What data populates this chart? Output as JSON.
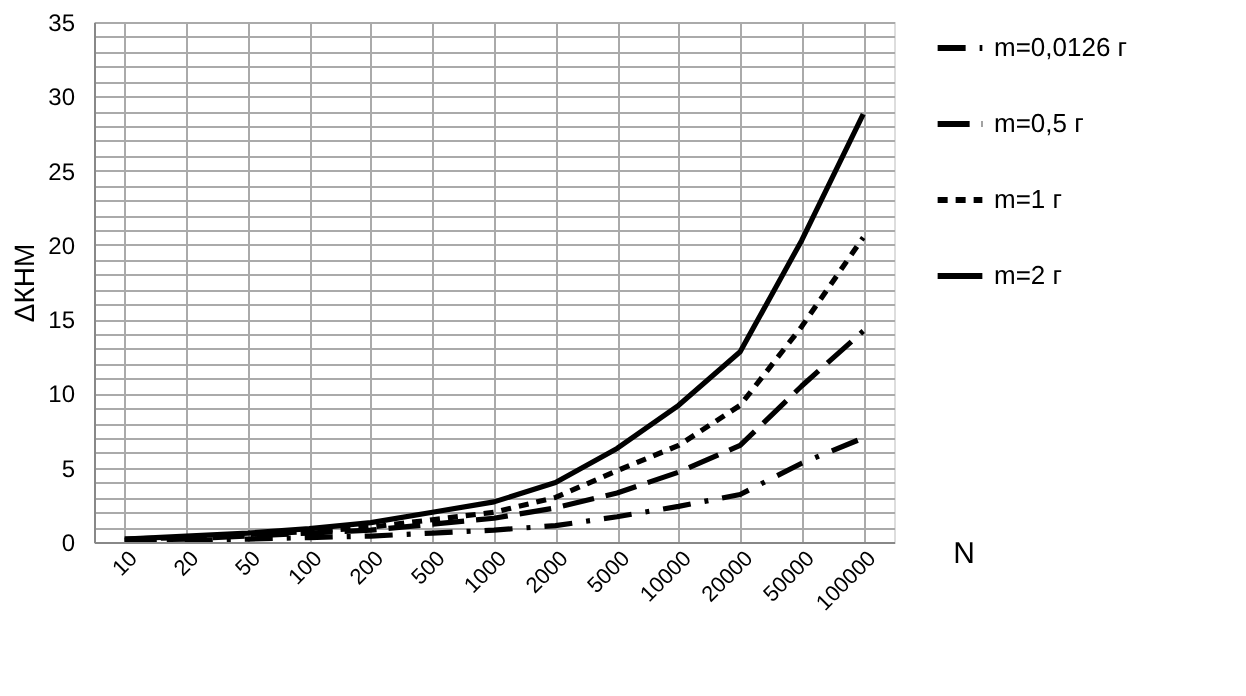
{
  "chart_data": {
    "type": "line",
    "xlabel": "N",
    "ylabel": "ΔКНМ",
    "categories": [
      "10",
      "20",
      "50",
      "100",
      "200",
      "500",
      "1000",
      "2000",
      "5000",
      "10000",
      "20000",
      "50000",
      "100000"
    ],
    "series": [
      {
        "name": "m=0,0126 г",
        "color": "#000000",
        "line_style": "dotted",
        "values": [
          0.1,
          0.1,
          0.2,
          0.3,
          0.4,
          0.6,
          0.8,
          1.1,
          1.7,
          2.4,
          3.2,
          5.3,
          7.0
        ]
      },
      {
        "name": "m=0,5 г",
        "color": "#000000",
        "line_style": "dashed",
        "values": [
          0.1,
          0.2,
          0.4,
          0.6,
          0.8,
          1.2,
          1.6,
          2.3,
          3.3,
          4.7,
          6.5,
          10.5,
          14.2
        ]
      },
      {
        "name": "m=1 г",
        "color": "#000000",
        "line_style": "dashed",
        "values": [
          0.2,
          0.3,
          0.5,
          0.7,
          1.0,
          1.5,
          2.0,
          3.0,
          4.8,
          6.5,
          9.2,
          14.5,
          20.5
        ]
      },
      {
        "name": "m=2 г",
        "color": "#000000",
        "line_style": "solid",
        "values": [
          0.2,
          0.4,
          0.6,
          0.9,
          1.3,
          2.0,
          2.7,
          4.0,
          6.3,
          9.2,
          12.8,
          20.3,
          28.8
        ]
      }
    ],
    "ylim": [
      0,
      35
    ],
    "yticks": [
      0,
      {
        "value": 1,
        "label": null
      },
      {
        "value": 2,
        "label": null
      },
      {
        "value": 3,
        "label": null
      },
      {
        "value": 4,
        "label": null
      },
      5,
      {
        "value": 6,
        "label": null
      },
      {
        "value": 7,
        "label": null
      },
      {
        "value": 8,
        "label": null
      },
      {
        "value": 9,
        "label": null
      },
      10,
      {
        "value": 11,
        "label": null
      },
      {
        "value": 12,
        "label": null
      },
      {
        "value": 13,
        "label": null
      },
      {
        "value": 14,
        "label": null
      },
      15,
      {
        "value": 16,
        "label": null
      },
      {
        "value": 17,
        "label": null
      },
      {
        "value": 18,
        "label": null
      },
      {
        "value": 19,
        "label": null
      },
      20,
      {
        "value": 21,
        "label": null
      },
      {
        "value": 22,
        "label": null
      },
      {
        "value": 23,
        "label": null
      },
      {
        "value": 24,
        "label": null
      },
      25,
      {
        "value": 26,
        "label": null
      },
      {
        "value": 27,
        "label": null
      },
      {
        "value": 28,
        "label": null
      },
      {
        "value": 29,
        "label": null
      },
      30,
      {
        "value": 31,
        "label": null
      },
      {
        "value": 32,
        "label": null
      },
      {
        "value": 33,
        "label": null
      },
      {
        "value": 34,
        "label": null
      },
      35
    ],
    "grid": true,
    "legend": "right"
  }
}
